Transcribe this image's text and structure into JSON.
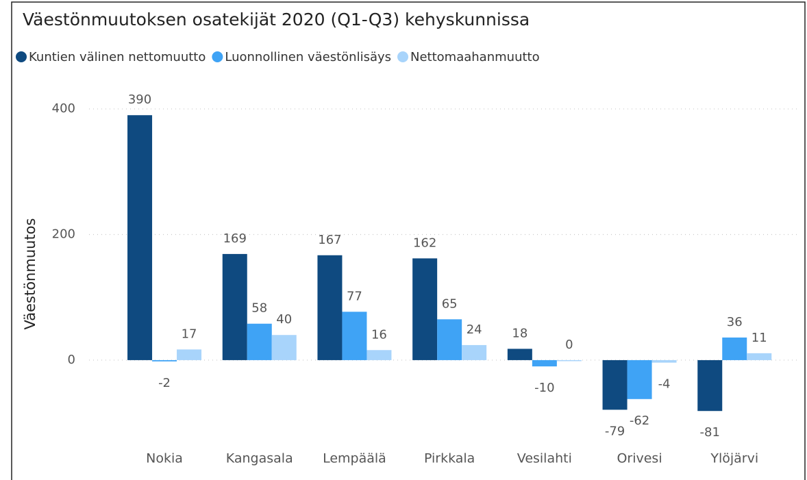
{
  "chart_data": {
    "type": "bar",
    "title": "Väestönmuutoksen osatekijät 2020 (Q1-Q3) kehyskunnissa",
    "ylabel": "Väestönmuutos",
    "categories": [
      "Nokia",
      "Kangasala",
      "Lempäälä",
      "Pirkkala",
      "Vesilahti",
      "Orivesi",
      "Ylöjärvi"
    ],
    "series": [
      {
        "name": "Kuntien välinen nettomuutto",
        "color": "#0f4a80",
        "values": [
          390,
          169,
          167,
          162,
          18,
          -79,
          -81
        ]
      },
      {
        "name": "Luonnollinen väestönlisäys",
        "color": "#3fa3f5",
        "values": [
          -2,
          58,
          77,
          65,
          -10,
          -62,
          36
        ]
      },
      {
        "name": "Nettomaahanmuutto",
        "color": "#a8d4fb",
        "values": [
          17,
          40,
          16,
          24,
          0,
          -4,
          11
        ]
      }
    ],
    "ylim": [
      -120,
      420
    ],
    "yticks": [
      0,
      200,
      400
    ],
    "grid": true,
    "legend": "top-left"
  }
}
